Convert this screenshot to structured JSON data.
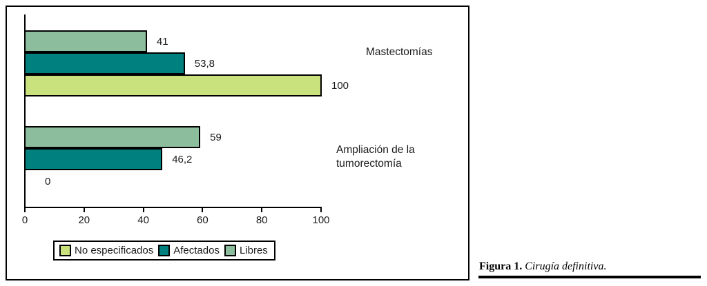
{
  "chart_data": {
    "type": "bar",
    "orientation": "horizontal",
    "title": "",
    "xlabel": "",
    "ylabel": "",
    "categories": [
      "Mastectomías",
      "Ampliación de la tumorectomía"
    ],
    "series": [
      {
        "name": "No especificados",
        "color": "#cae27e",
        "values": [
          100,
          0
        ],
        "value_labels": [
          "100",
          "0"
        ]
      },
      {
        "name": "Afectados",
        "color": "#00807e",
        "values": [
          53.8,
          46.2
        ],
        "value_labels": [
          "53,8",
          "46,2"
        ]
      },
      {
        "name": "Libres",
        "color": "#8cbd9c",
        "values": [
          41,
          59
        ],
        "value_labels": [
          "41",
          "59"
        ]
      }
    ],
    "row_order_top_to_bottom": [
      "Libres",
      "Afectados",
      "No especificados"
    ],
    "xlim": [
      0,
      100
    ],
    "x_tick_values": [
      0,
      20,
      40,
      60,
      80,
      100
    ],
    "x_tick_labels": [
      "0",
      "20",
      "40",
      "60",
      "80",
      "100"
    ],
    "legend": {
      "position": "bottom-left",
      "entries": [
        "No especificados",
        "Afectados",
        "Libres"
      ]
    },
    "grid": false,
    "bar_border_color": "#000000"
  },
  "caption": {
    "prefix": "Figura 1.",
    "text": "Cirugía definitiva."
  }
}
